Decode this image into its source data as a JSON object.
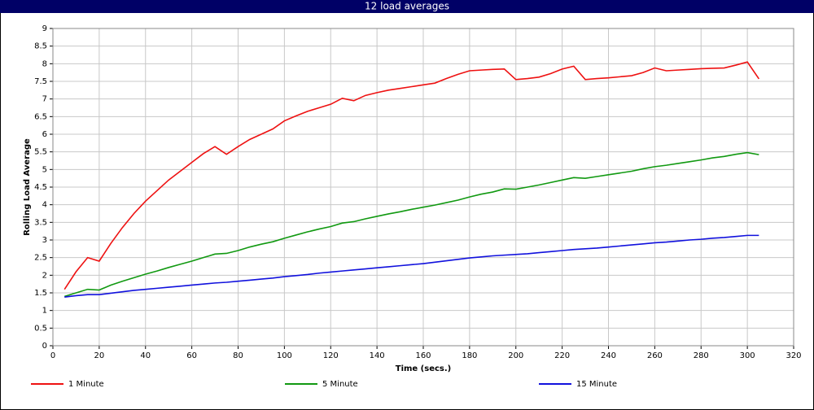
{
  "chart_data": {
    "type": "line",
    "title": "12 load averages",
    "x_label": "Time (secs.)",
    "y_label": "Rolling Load Average",
    "x": [
      5,
      10,
      15,
      20,
      25,
      30,
      35,
      40,
      45,
      50,
      55,
      60,
      65,
      70,
      75,
      80,
      85,
      90,
      95,
      100,
      105,
      110,
      115,
      120,
      125,
      130,
      135,
      140,
      145,
      150,
      155,
      160,
      165,
      170,
      175,
      180,
      185,
      190,
      195,
      200,
      205,
      210,
      215,
      220,
      225,
      230,
      235,
      240,
      245,
      250,
      255,
      260,
      265,
      270,
      275,
      280,
      285,
      290,
      295,
      300,
      305
    ],
    "series": [
      {
        "name": "1 Minute",
        "color": "#ee1111",
        "values": [
          1.6,
          2.1,
          2.5,
          2.4,
          2.9,
          3.35,
          3.75,
          4.1,
          4.4,
          4.7,
          4.95,
          5.2,
          5.45,
          5.65,
          5.43,
          5.65,
          5.85,
          6.0,
          6.15,
          6.38,
          6.52,
          6.65,
          6.75,
          6.85,
          7.02,
          6.95,
          7.1,
          7.18,
          7.25,
          7.3,
          7.35,
          7.4,
          7.45,
          7.58,
          7.7,
          7.8,
          7.82,
          7.84,
          7.85,
          7.55,
          7.58,
          7.62,
          7.72,
          7.85,
          7.93,
          7.55,
          7.58,
          7.6,
          7.63,
          7.66,
          7.75,
          7.88,
          7.8,
          7.82,
          7.84,
          7.86,
          7.87,
          7.88,
          7.96,
          8.05,
          7.57
        ]
      },
      {
        "name": "5 Minute",
        "color": "#119911",
        "values": [
          1.4,
          1.5,
          1.6,
          1.58,
          1.72,
          1.83,
          1.93,
          2.03,
          2.12,
          2.22,
          2.31,
          2.4,
          2.5,
          2.6,
          2.62,
          2.7,
          2.8,
          2.88,
          2.95,
          3.05,
          3.14,
          3.23,
          3.31,
          3.38,
          3.48,
          3.52,
          3.6,
          3.67,
          3.74,
          3.8,
          3.87,
          3.93,
          3.99,
          4.06,
          4.13,
          4.22,
          4.3,
          4.36,
          4.45,
          4.44,
          4.5,
          4.56,
          4.63,
          4.7,
          4.77,
          4.75,
          4.8,
          4.85,
          4.9,
          4.95,
          5.02,
          5.08,
          5.12,
          5.17,
          5.22,
          5.27,
          5.33,
          5.37,
          5.43,
          5.48,
          5.42
        ]
      },
      {
        "name": "15 Minute",
        "color": "#1111dd",
        "values": [
          1.38,
          1.42,
          1.45,
          1.45,
          1.49,
          1.53,
          1.57,
          1.6,
          1.63,
          1.66,
          1.69,
          1.72,
          1.75,
          1.78,
          1.8,
          1.83,
          1.86,
          1.89,
          1.92,
          1.96,
          1.99,
          2.02,
          2.06,
          2.09,
          2.12,
          2.15,
          2.18,
          2.21,
          2.24,
          2.27,
          2.3,
          2.33,
          2.37,
          2.41,
          2.45,
          2.49,
          2.52,
          2.55,
          2.57,
          2.59,
          2.61,
          2.64,
          2.67,
          2.7,
          2.73,
          2.75,
          2.77,
          2.8,
          2.83,
          2.86,
          2.89,
          2.92,
          2.94,
          2.97,
          3.0,
          3.02,
          3.05,
          3.07,
          3.1,
          3.13,
          3.13
        ]
      }
    ],
    "xlim": [
      0,
      320
    ],
    "xticks": [
      0,
      20,
      40,
      60,
      80,
      100,
      120,
      140,
      160,
      180,
      200,
      220,
      240,
      260,
      280,
      300,
      320
    ],
    "ylim": [
      0,
      9
    ],
    "yticks": [
      0,
      0.5,
      1,
      1.5,
      2,
      2.5,
      3,
      3.5,
      4,
      4.5,
      5,
      5.5,
      6,
      6.5,
      7,
      7.5,
      8,
      8.5,
      9
    ],
    "grid": true
  }
}
